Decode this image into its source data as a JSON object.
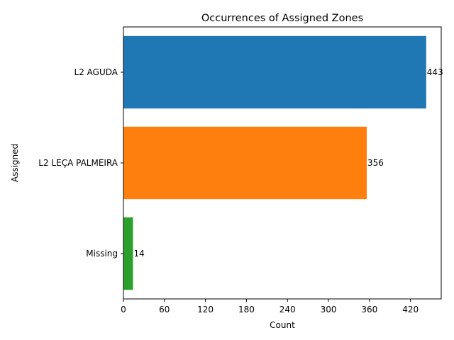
{
  "chart_data": {
    "type": "bar",
    "orientation": "horizontal",
    "title": "Occurrences of Assigned Zones",
    "xlabel": "Count",
    "ylabel": "Assigned",
    "categories": [
      "L2 AGUDA",
      "L2 LEÇA PALMEIRA",
      "Missing"
    ],
    "values": [
      443,
      356,
      14
    ],
    "xlim": [
      0,
      465
    ],
    "xticks": [
      0,
      60,
      120,
      180,
      240,
      300,
      360,
      420
    ],
    "grid": false,
    "legend": "none",
    "colors": [
      "#1f77b4",
      "#ff7f0e",
      "#2ca02c"
    ]
  }
}
